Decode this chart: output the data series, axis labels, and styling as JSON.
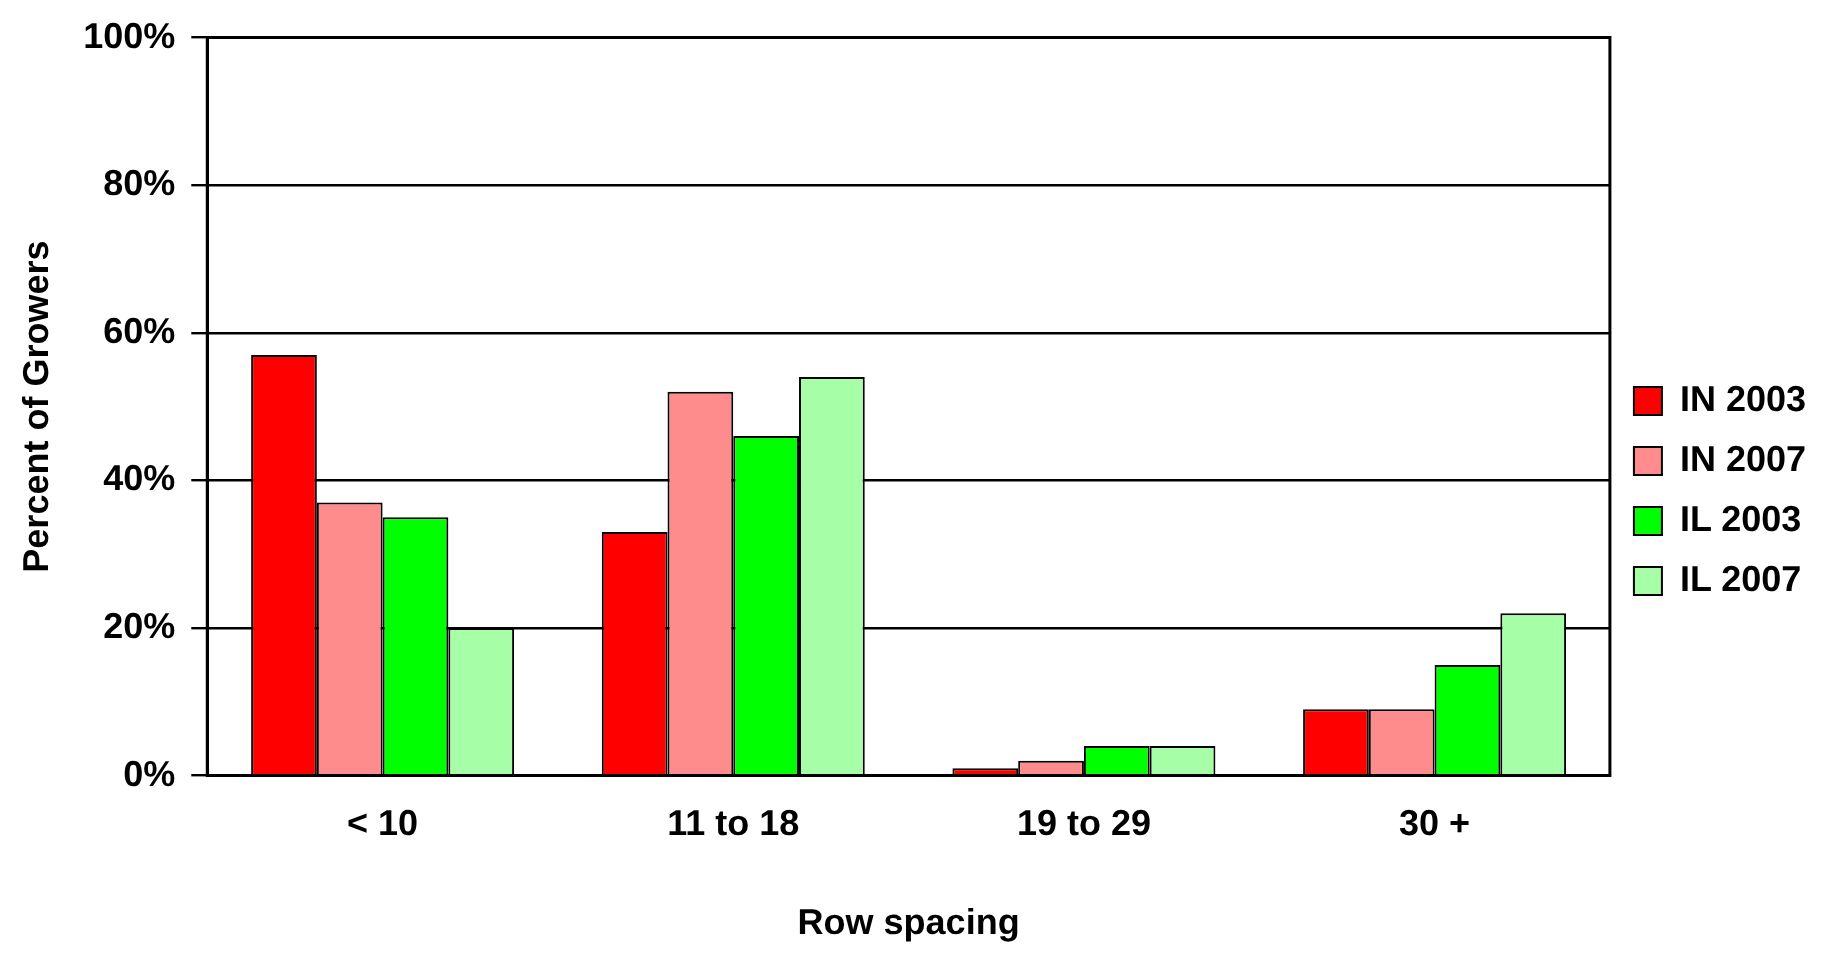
{
  "chart_data": {
    "type": "bar",
    "xlabel": "Row spacing",
    "ylabel": "Percent of Growers",
    "categories": [
      "< 10",
      "11 to 18",
      "19 to 29",
      "30 +"
    ],
    "series": [
      {
        "name": "IN 2003",
        "color": "#ff0000",
        "values": [
          57,
          33,
          1,
          9
        ]
      },
      {
        "name": "IN 2007",
        "color": "#ff8c8c",
        "values": [
          37,
          52,
          2,
          9
        ]
      },
      {
        "name": "IL 2003",
        "color": "#00ff00",
        "values": [
          35,
          46,
          4,
          15
        ]
      },
      {
        "name": "IL 2007",
        "color": "#a6ffa6",
        "values": [
          20,
          54,
          4,
          22
        ]
      }
    ],
    "ylim": [
      0,
      100
    ],
    "yticks": [
      {
        "value": 0,
        "label": "0%"
      },
      {
        "value": 20,
        "label": "20%"
      },
      {
        "value": 40,
        "label": "40%"
      },
      {
        "value": 60,
        "label": "60%"
      },
      {
        "value": 80,
        "label": "80%"
      },
      {
        "value": 100,
        "label": "100%"
      }
    ],
    "grid": "y",
    "legend": "right"
  }
}
